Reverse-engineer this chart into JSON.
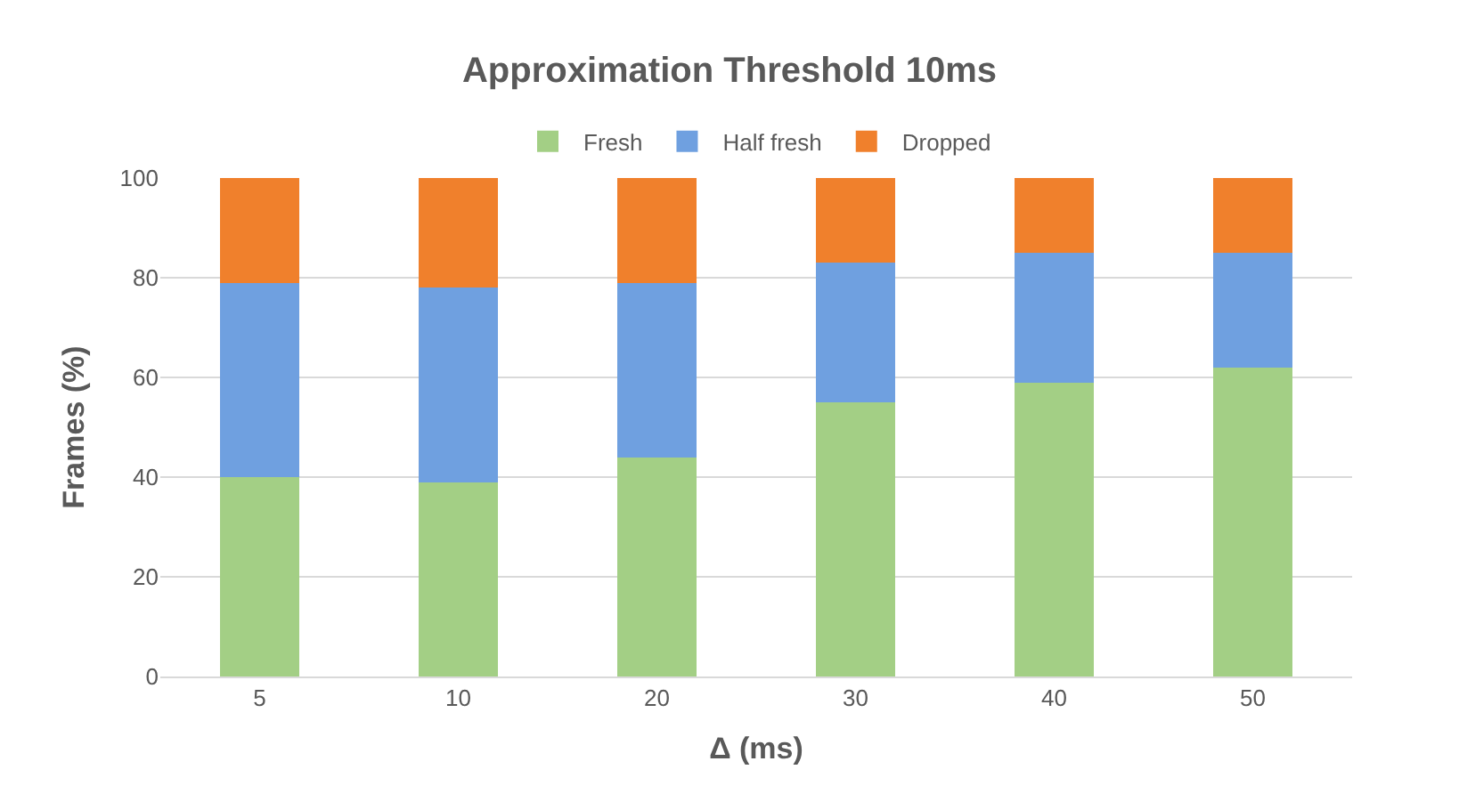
{
  "chart_data": {
    "type": "bar",
    "stacked": true,
    "title": "Approximation Threshold 10ms",
    "xlabel": "Δ (ms)",
    "ylabel": "Frames (%)",
    "categories": [
      "5",
      "10",
      "20",
      "30",
      "40",
      "50"
    ],
    "series": [
      {
        "name": "Fresh",
        "color": "#a3cf85",
        "values": [
          40,
          39,
          44,
          55,
          59,
          62
        ]
      },
      {
        "name": "Half fresh",
        "color": "#6fa0e0",
        "values": [
          39,
          39,
          35,
          28,
          26,
          23
        ]
      },
      {
        "name": "Dropped",
        "color": "#f0802c",
        "values": [
          21,
          22,
          21,
          17,
          15,
          15
        ]
      }
    ],
    "ylim": [
      0,
      100
    ],
    "yticks": [
      0,
      20,
      40,
      60,
      80,
      100
    ],
    "grid": "y",
    "legend": "top"
  }
}
